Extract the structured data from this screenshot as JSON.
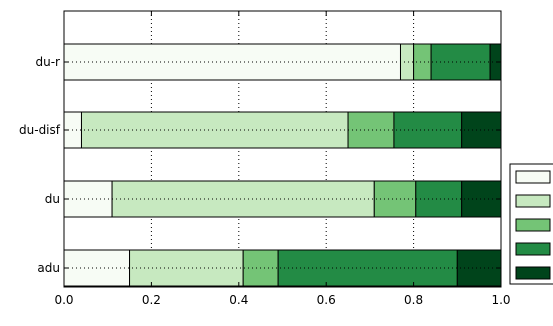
{
  "chart_data": {
    "type": "bar",
    "orientation": "horizontal",
    "stacked": true,
    "categories": [
      "adu",
      "du",
      "du-disf",
      "du-r"
    ],
    "series": [
      {
        "values": [
          0.15,
          0.11,
          0.04,
          0.77
        ],
        "color": "#f7fcf5"
      },
      {
        "values": [
          0.26,
          0.6,
          0.61,
          0.03
        ],
        "color": "#c7e9c0"
      },
      {
        "values": [
          0.08,
          0.095,
          0.105,
          0.04
        ],
        "color": "#74c476"
      },
      {
        "values": [
          0.41,
          0.105,
          0.155,
          0.135
        ],
        "color": "#238b45"
      },
      {
        "values": [
          0.1,
          0.09,
          0.09,
          0.025
        ],
        "color": "#00441b"
      }
    ],
    "xlim": [
      0.0,
      1.0
    ],
    "xticks": [
      "0.0",
      "0.2",
      "0.4",
      "0.6",
      "0.8",
      "1.0"
    ],
    "xtick_values": [
      0.0,
      0.2,
      0.4,
      0.6,
      0.8,
      1.0
    ],
    "grid": true,
    "grid_style": "dotted",
    "legend": {
      "position": "right",
      "labels": [
        "",
        "",
        "",
        "",
        ""
      ]
    },
    "title": "",
    "xlabel": "",
    "ylabel": ""
  }
}
